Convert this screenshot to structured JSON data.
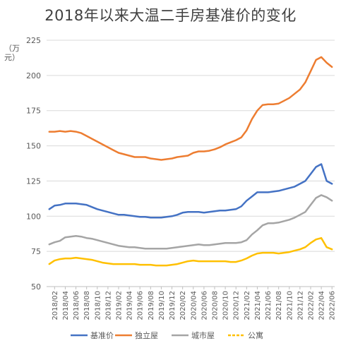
{
  "chart_data": {
    "type": "line",
    "title": "2018年以来大温二手房基准价的变化",
    "ylabel": "（万元）",
    "xlabel": "",
    "ylim": [
      50,
      225
    ],
    "yticks": [
      50,
      75,
      100,
      125,
      150,
      175,
      200,
      225
    ],
    "grid": true,
    "legend_position": "bottom",
    "x": [
      "2018/01",
      "2018/02",
      "2018/03",
      "2018/04",
      "2018/05",
      "2018/06",
      "2018/07",
      "2018/08",
      "2018/09",
      "2018/10",
      "2018/11",
      "2018/12",
      "2019/01",
      "2019/02",
      "2019/03",
      "2019/04",
      "2019/05",
      "2019/06",
      "2019/07",
      "2019/08",
      "2019/09",
      "2019/10",
      "2019/11",
      "2019/12",
      "2020/01",
      "2020/02",
      "2020/03",
      "2020/04",
      "2020/05",
      "2020/06",
      "2020/07",
      "2020/08",
      "2020/09",
      "2020/10",
      "2020/11",
      "2020/12",
      "2021/01",
      "2021/02",
      "2021/03",
      "2021/04",
      "2021/05",
      "2021/06",
      "2021/07",
      "2021/08",
      "2021/09",
      "2021/10",
      "2021/11",
      "2021/12",
      "2022/01",
      "2022/02",
      "2022/03",
      "2022/04",
      "2022/05",
      "2022/06"
    ],
    "x_tick_labels": [
      "2018/02",
      "2018/04",
      "2018/06",
      "2018/08",
      "2018/10",
      "2018/12",
      "2019/02",
      "2019/04",
      "2019/06",
      "2019/08",
      "2019/10",
      "2019/12",
      "2020/02",
      "2020/04",
      "2020/06",
      "2020/08",
      "2020/10",
      "2020/12",
      "2021/02",
      "2021/04",
      "2021/06",
      "2021/08",
      "2021/10",
      "2021/12",
      "2022/02",
      "2022/04",
      "2022/06"
    ],
    "series": [
      {
        "name": "基准价",
        "color": "#4472C4",
        "dash": "solid",
        "values": [
          105,
          107.5,
          108,
          109,
          109,
          109,
          108.5,
          108,
          106.5,
          105,
          104,
          103,
          102,
          101,
          101,
          100.5,
          100,
          99.5,
          99.5,
          99,
          99,
          99,
          99.5,
          100,
          101,
          102.5,
          103,
          103,
          103,
          102.5,
          103,
          103.5,
          104,
          104,
          104.5,
          105,
          107,
          111,
          114,
          117,
          117,
          117,
          117.5,
          118,
          119,
          120,
          121,
          123,
          125,
          130,
          135,
          137,
          125,
          123
        ]
      },
      {
        "name": "独立屋",
        "color": "#ED7D31",
        "dash": "solid",
        "values": [
          160,
          160,
          160.5,
          160,
          160.5,
          160,
          159,
          157,
          155,
          153,
          151,
          149,
          147,
          145,
          144,
          143,
          142,
          142,
          142,
          141,
          140.5,
          140,
          140.5,
          141,
          142,
          142.5,
          143,
          145,
          146,
          146,
          146.5,
          147.5,
          149,
          151,
          152.5,
          154,
          156,
          161,
          169,
          175,
          179,
          179.5,
          179.5,
          180,
          182,
          184,
          187,
          190,
          195,
          203,
          211,
          213,
          209,
          206
        ]
      },
      {
        "name": "城市屋",
        "color": "#A5A5A5",
        "dash": "solid",
        "values": [
          80,
          81.5,
          82.5,
          85,
          85.5,
          86,
          85.5,
          84.5,
          84,
          83,
          82,
          81,
          80,
          79,
          78.5,
          78,
          78,
          77.5,
          77,
          77,
          77,
          77,
          77,
          77.5,
          78,
          78.5,
          79,
          79.5,
          80,
          79.5,
          79.5,
          80,
          80.5,
          81,
          81,
          81,
          81.5,
          83,
          87,
          90,
          93.5,
          95,
          95,
          95.5,
          96.5,
          97.5,
          99,
          101,
          103,
          108,
          113,
          115,
          113.5,
          111
        ]
      },
      {
        "name": "公寓",
        "color": "#FFC000",
        "dash": "dotted",
        "values": [
          66,
          68.5,
          69.5,
          70,
          70,
          70.5,
          70,
          69.5,
          69,
          68,
          67,
          66.5,
          66,
          66,
          66,
          66,
          66,
          65.5,
          65.5,
          65.5,
          65,
          65,
          65,
          65.5,
          66,
          67,
          68,
          68.5,
          68,
          68,
          68,
          68,
          68,
          68,
          67.5,
          67.5,
          68.5,
          70,
          72,
          73.5,
          74,
          74,
          74,
          73.5,
          74,
          74.5,
          75.5,
          76.5,
          78,
          81,
          83.5,
          84.5,
          78,
          76.5
        ]
      }
    ]
  }
}
